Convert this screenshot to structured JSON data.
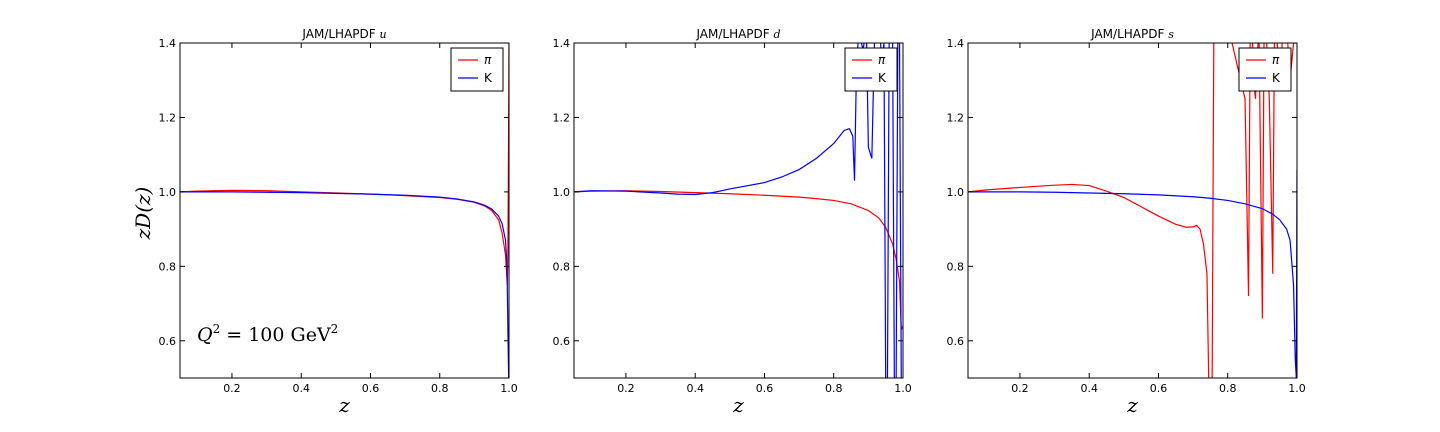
{
  "figure": {
    "annotation": {
      "prefix": "Q",
      "sup": "2",
      "mid": " = 100 GeV",
      "sup2": "2"
    }
  },
  "chart_data": [
    {
      "type": "line",
      "title": "JAM/LHAPDF ",
      "title_var": "u",
      "xlabel": "z",
      "ylabel": "zD(z)",
      "xlim": [
        0.05,
        1.0
      ],
      "ylim": [
        0.5,
        1.4
      ],
      "xticks": [
        "0.2",
        "0.4",
        "0.6",
        "0.8",
        "1.0"
      ],
      "yticks": [
        "0.6",
        "0.8",
        "1.0",
        "1.2",
        "1.4"
      ],
      "legend": "upper-right",
      "series": [
        {
          "name": "π",
          "color": "#ff0000",
          "x": [
            0.05,
            0.1,
            0.2,
            0.3,
            0.4,
            0.5,
            0.6,
            0.7,
            0.8,
            0.85,
            0.9,
            0.93,
            0.95,
            0.97,
            0.98,
            0.99,
            0.995,
            0.997,
            0.999,
            1.0
          ],
          "y": [
            1.0,
            1.002,
            1.004,
            1.003,
            1.0,
            0.997,
            0.994,
            0.99,
            0.985,
            0.98,
            0.972,
            0.962,
            0.95,
            0.925,
            0.89,
            0.83,
            0.75,
            0.85,
            1.2,
            1.4
          ]
        },
        {
          "name": "K",
          "color": "#0000ff",
          "x": [
            0.05,
            0.1,
            0.2,
            0.3,
            0.4,
            0.5,
            0.6,
            0.7,
            0.8,
            0.85,
            0.9,
            0.93,
            0.95,
            0.97,
            0.98,
            0.99,
            0.993,
            0.995,
            0.997,
            0.999,
            1.0
          ],
          "y": [
            1.0,
            1.0,
            1.0,
            0.999,
            0.998,
            0.996,
            0.994,
            0.991,
            0.986,
            0.981,
            0.973,
            0.964,
            0.954,
            0.935,
            0.915,
            0.87,
            0.82,
            0.75,
            0.62,
            0.5,
            0.5
          ]
        }
      ]
    },
    {
      "type": "line",
      "title": "JAM/LHAPDF ",
      "title_var": "d",
      "xlabel": "z",
      "ylabel": "",
      "xlim": [
        0.05,
        1.0
      ],
      "ylim": [
        0.5,
        1.4
      ],
      "xticks": [
        "0.2",
        "0.4",
        "0.6",
        "0.8",
        "1.0"
      ],
      "yticks": [
        "0.6",
        "0.8",
        "1.0",
        "1.2",
        "1.4"
      ],
      "legend": "upper-right",
      "series": [
        {
          "name": "π",
          "color": "#ff0000",
          "x": [
            0.05,
            0.1,
            0.2,
            0.3,
            0.4,
            0.5,
            0.6,
            0.7,
            0.75,
            0.8,
            0.85,
            0.9,
            0.93,
            0.95,
            0.97,
            0.98,
            0.99,
            0.995,
            1.0
          ],
          "y": [
            1.0,
            1.002,
            1.003,
            1.001,
            0.998,
            0.995,
            0.991,
            0.986,
            0.982,
            0.977,
            0.968,
            0.95,
            0.93,
            0.905,
            0.86,
            0.82,
            0.76,
            0.63,
            0.64
          ]
        },
        {
          "name": "K",
          "color": "#0000ff",
          "x": [
            0.05,
            0.1,
            0.2,
            0.3,
            0.35,
            0.4,
            0.45,
            0.5,
            0.6,
            0.65,
            0.7,
            0.75,
            0.8,
            0.83,
            0.845,
            0.855,
            0.86,
            0.865,
            0.87,
            0.875,
            0.88,
            0.885,
            0.89,
            0.895,
            0.9,
            0.91,
            0.92,
            0.93,
            0.935,
            0.94,
            0.945,
            0.95,
            0.955,
            0.96,
            0.965,
            0.97,
            0.975,
            0.98,
            0.985,
            0.99,
            0.995,
            1.0
          ],
          "y": [
            1.0,
            1.003,
            1.002,
            0.997,
            0.994,
            0.993,
            0.998,
            1.008,
            1.025,
            1.04,
            1.06,
            1.09,
            1.13,
            1.165,
            1.17,
            1.15,
            1.03,
            1.3,
            1.4,
            1.45,
            1.4,
            1.38,
            1.42,
            1.4,
            1.12,
            1.09,
            1.5,
            1.5,
            1.4,
            1.35,
            1.4,
            0.5,
            0.47,
            1.4,
            1.5,
            1.4,
            0.5,
            0.45,
            1.4,
            1.4,
            0.5,
            0.5
          ]
        }
      ]
    },
    {
      "type": "line",
      "title": "JAM/LHAPDF ",
      "title_var": "s",
      "xlabel": "z",
      "ylabel": "",
      "xlim": [
        0.05,
        1.0
      ],
      "ylim": [
        0.5,
        1.4
      ],
      "xticks": [
        "0.2",
        "0.4",
        "0.6",
        "0.8",
        "1.0"
      ],
      "yticks": [
        "0.6",
        "0.8",
        "1.0",
        "1.2",
        "1.4"
      ],
      "legend": "upper-right",
      "series": [
        {
          "name": "π",
          "color": "#ff0000",
          "x": [
            0.05,
            0.1,
            0.2,
            0.3,
            0.35,
            0.4,
            0.45,
            0.5,
            0.55,
            0.6,
            0.65,
            0.68,
            0.7,
            0.71,
            0.72,
            0.73,
            0.74,
            0.745,
            0.75,
            0.755,
            0.76,
            0.8,
            0.85,
            0.86,
            0.865,
            0.87,
            0.875,
            0.88,
            0.89,
            0.9,
            0.905,
            0.91,
            0.92,
            0.93,
            0.935,
            0.94,
            0.95,
            0.96,
            0.97,
            0.98,
            0.99,
            1.0
          ],
          "y": [
            1.0,
            1.005,
            1.012,
            1.018,
            1.02,
            1.017,
            1.002,
            0.985,
            0.96,
            0.935,
            0.913,
            0.905,
            0.906,
            0.91,
            0.9,
            0.86,
            0.78,
            0.5,
            0.45,
            0.5,
            1.45,
            1.45,
            1.25,
            0.72,
            1.45,
            1.45,
            1.3,
            1.25,
            1.45,
            0.66,
            1.45,
            1.45,
            1.25,
            0.78,
            1.45,
            1.45,
            1.28,
            1.45,
            1.45,
            1.3,
            1.4,
            1.4
          ]
        },
        {
          "name": "K",
          "color": "#0000ff",
          "x": [
            0.05,
            0.1,
            0.2,
            0.3,
            0.4,
            0.5,
            0.6,
            0.7,
            0.75,
            0.8,
            0.85,
            0.9,
            0.93,
            0.95,
            0.97,
            0.98,
            0.99,
            0.995,
            0.998,
            1.0
          ],
          "y": [
            1.0,
            1.0,
            1.0,
            0.999,
            0.997,
            0.995,
            0.992,
            0.987,
            0.983,
            0.977,
            0.968,
            0.955,
            0.94,
            0.925,
            0.9,
            0.87,
            0.75,
            0.55,
            0.5,
            1.06
          ]
        }
      ]
    }
  ]
}
